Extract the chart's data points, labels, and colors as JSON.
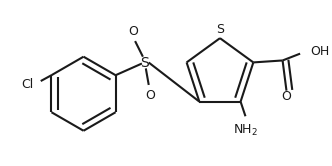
{
  "bg_color": "#ffffff",
  "line_color": "#1a1a1a",
  "line_width": 1.5,
  "font_size": 9.0,
  "figsize": [
    3.32,
    1.66
  ],
  "dpi": 100,
  "xlim": [
    0,
    3.32
  ],
  "ylim": [
    0,
    1.66
  ]
}
